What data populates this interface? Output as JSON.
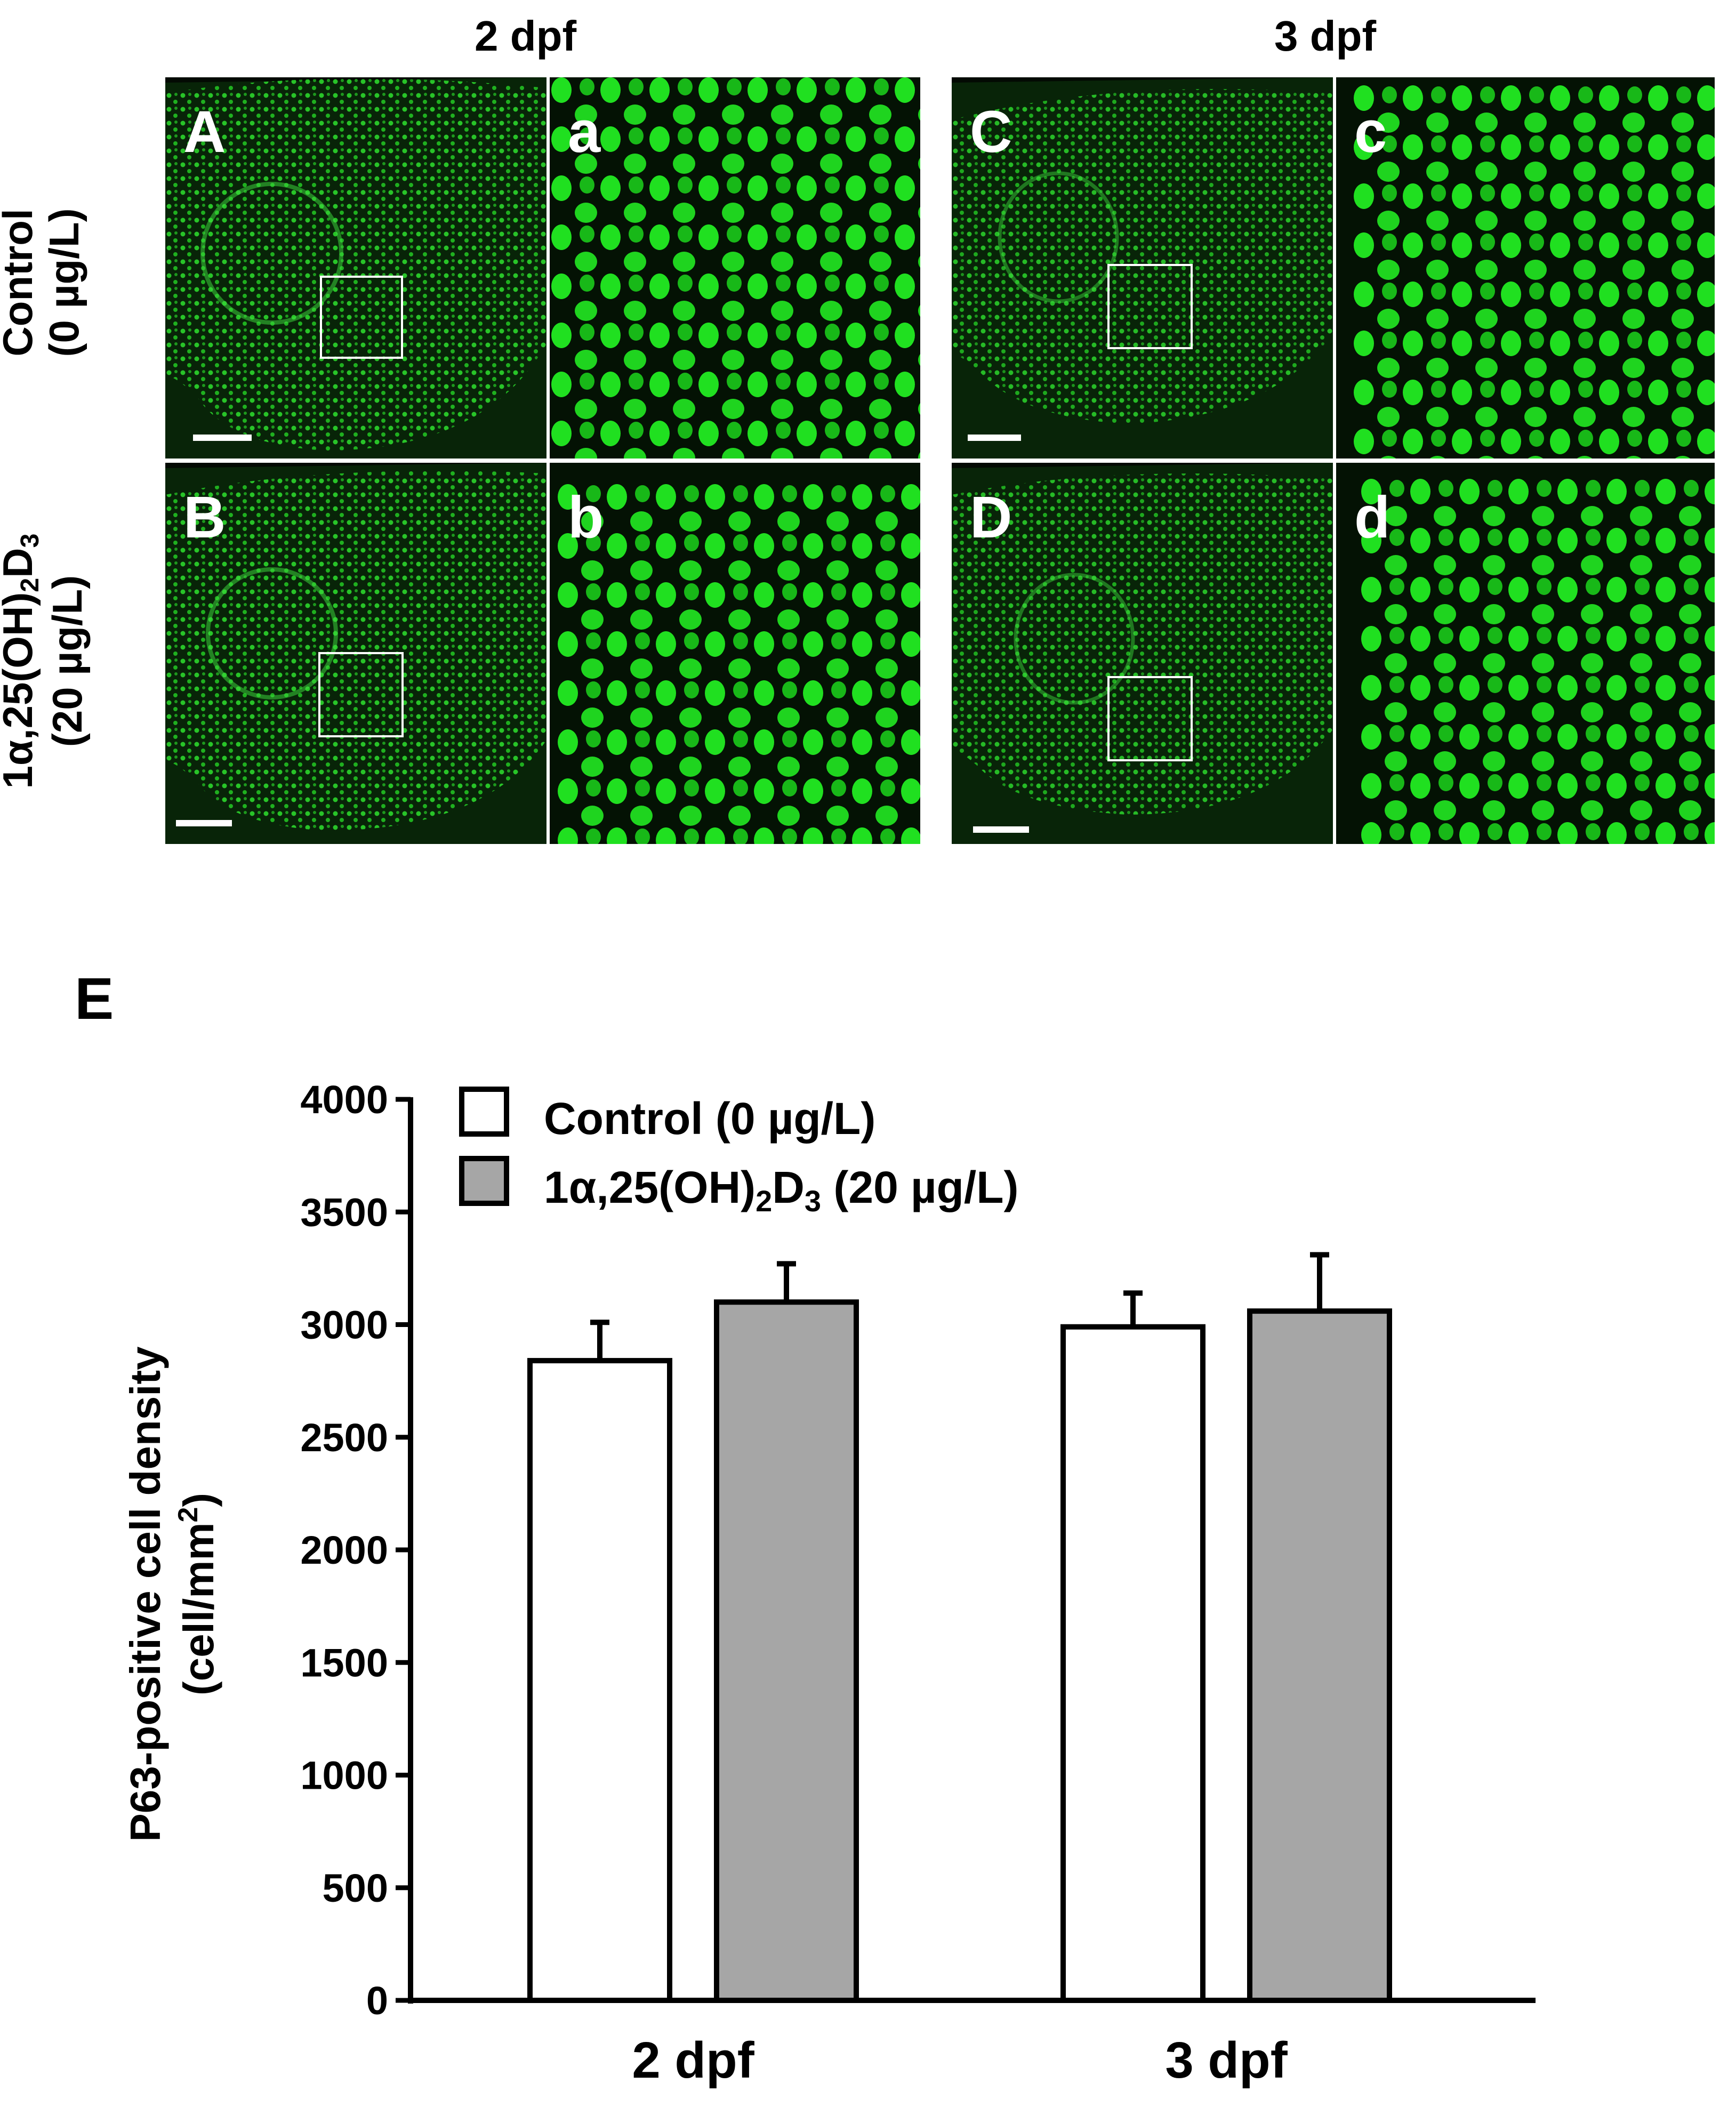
{
  "figure": {
    "col_titles": [
      "2 dpf",
      "3 dpf"
    ],
    "row_labels": [
      {
        "line1": "Control",
        "line2": "(0 µg/L)"
      },
      {
        "line1": "1α,25(OH)",
        "sub": "2",
        "line1b": "D",
        "sub2": "3",
        "line2": "(20 µg/L)"
      }
    ],
    "panel_letters": [
      "A",
      "a",
      "C",
      "c",
      "B",
      "b",
      "D",
      "d"
    ],
    "panel_e_letter": "E",
    "fluorescence_color": "#22d422"
  },
  "chart_data": {
    "type": "bar",
    "categories": [
      "2 dpf",
      "3 dpf"
    ],
    "ylabel_line1": "P63-positive cell density",
    "ylabel_line2_pre": "(cell/mm",
    "ylabel_line2_sup": "2",
    "ylabel_line2_post": ")",
    "ylim": [
      0,
      4000
    ],
    "yticks": [
      0,
      500,
      1000,
      1500,
      2000,
      2500,
      3000,
      3500,
      4000
    ],
    "legend_position": "top-left",
    "series": [
      {
        "name": "Control (0 µg/L)",
        "color": "#ffffff",
        "values": [
          2840,
          2990
        ],
        "errors": [
          170,
          150
        ]
      },
      {
        "name_pre": "1α,25(OH)",
        "name_sub": "2",
        "name_mid": "D",
        "name_sub2": "3",
        "name_post": " (20 µg/L)",
        "color": "#a6a6a6",
        "values": [
          3100,
          3060
        ],
        "errors": [
          170,
          250
        ]
      }
    ]
  }
}
